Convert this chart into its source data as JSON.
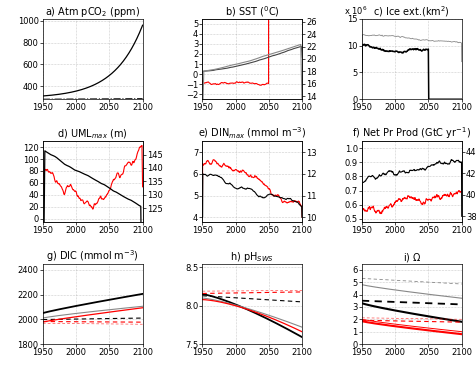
{
  "title_fontsize": 7.0,
  "tick_fontsize": 6.0,
  "panels": {
    "a": {
      "ylim": [
        280,
        1020
      ],
      "yticks": [
        400,
        600,
        800,
        1000
      ]
    },
    "b": {
      "ylim_l": [
        -2.5,
        5.5
      ],
      "yticks_l": [
        -2,
        -1,
        0,
        1,
        2,
        3,
        4,
        5
      ],
      "ylim_r": [
        13.5,
        26.5
      ],
      "yticks_r": [
        14,
        16,
        18,
        20,
        22,
        24,
        26
      ]
    },
    "c": {
      "ylim": [
        0,
        15
      ],
      "yticks": [
        0,
        5,
        10,
        15
      ]
    },
    "d": {
      "ylim_l": [
        -5,
        130
      ],
      "yticks_l": [
        0,
        20,
        40,
        60,
        80,
        100,
        120
      ],
      "ylim_r": [
        120,
        150
      ],
      "yticks_r": [
        125,
        130,
        135,
        140,
        145
      ]
    },
    "e": {
      "ylim_l": [
        3.8,
        7.5
      ],
      "yticks_l": [
        4,
        5,
        6,
        7
      ],
      "ylim_r": [
        9.8,
        13.5
      ],
      "yticks_r": [
        10,
        11,
        12,
        13
      ]
    },
    "f": {
      "ylim_l": [
        0.48,
        1.05
      ],
      "yticks_l": [
        0.5,
        0.6,
        0.7,
        0.8,
        0.9,
        1.0
      ],
      "ylim_r": [
        37.5,
        45
      ],
      "yticks_r": [
        38,
        40,
        42,
        44
      ]
    },
    "g": {
      "ylim": [
        1800,
        2450
      ],
      "yticks": [
        1800,
        2000,
        2200,
        2400
      ]
    },
    "h": {
      "ylim": [
        7.5,
        8.55
      ],
      "yticks": [
        7.5,
        8.0,
        8.5
      ]
    },
    "i": {
      "ylim": [
        0,
        6.5
      ],
      "yticks": [
        0,
        1,
        2,
        3,
        4,
        5,
        6
      ]
    }
  }
}
